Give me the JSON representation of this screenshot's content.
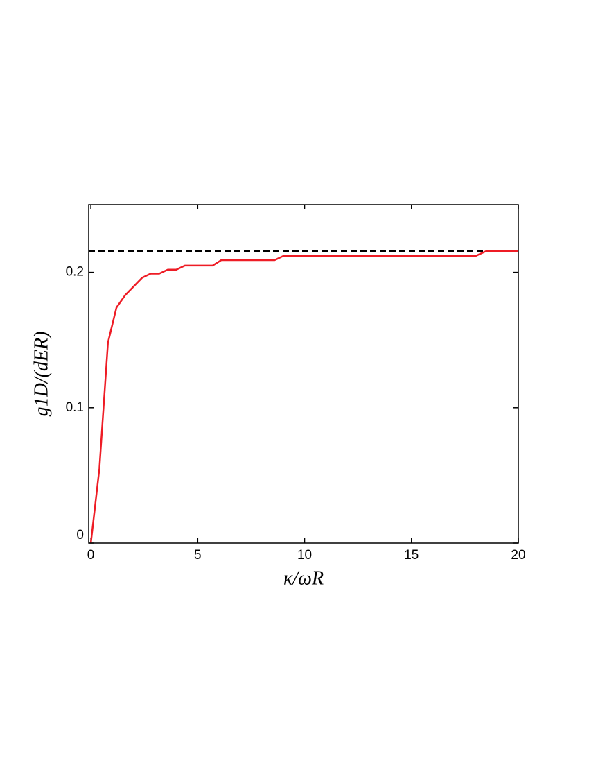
{
  "chart_data": {
    "type": "line",
    "xlabel": "κ/ωR",
    "ylabel": "g1D/(dER)",
    "xlim": [
      -0.1,
      20
    ],
    "xticks": [
      0,
      5,
      10,
      15,
      20
    ],
    "ylim": [
      0,
      0.25
    ],
    "yticks": [
      0,
      0.1,
      0.2
    ],
    "x": [
      0,
      0.4,
      0.8,
      1.2,
      1.6,
      2.4,
      2.8,
      3.2,
      3.6,
      4.0,
      4.4,
      5.7,
      6.1,
      8.6,
      9.0,
      18.0,
      18.5,
      20
    ],
    "series": [
      {
        "color": "#ee1c25",
        "values": [
          0,
          0.055,
          0.148,
          0.174,
          0.183,
          0.196,
          0.199,
          0.199,
          0.202,
          0.202,
          0.205,
          0.205,
          0.209,
          0.209,
          0.212,
          0.212,
          0.2157,
          0.2157
        ]
      }
    ],
    "reference_line": {
      "value": 0.2157,
      "color": "#000000"
    }
  }
}
